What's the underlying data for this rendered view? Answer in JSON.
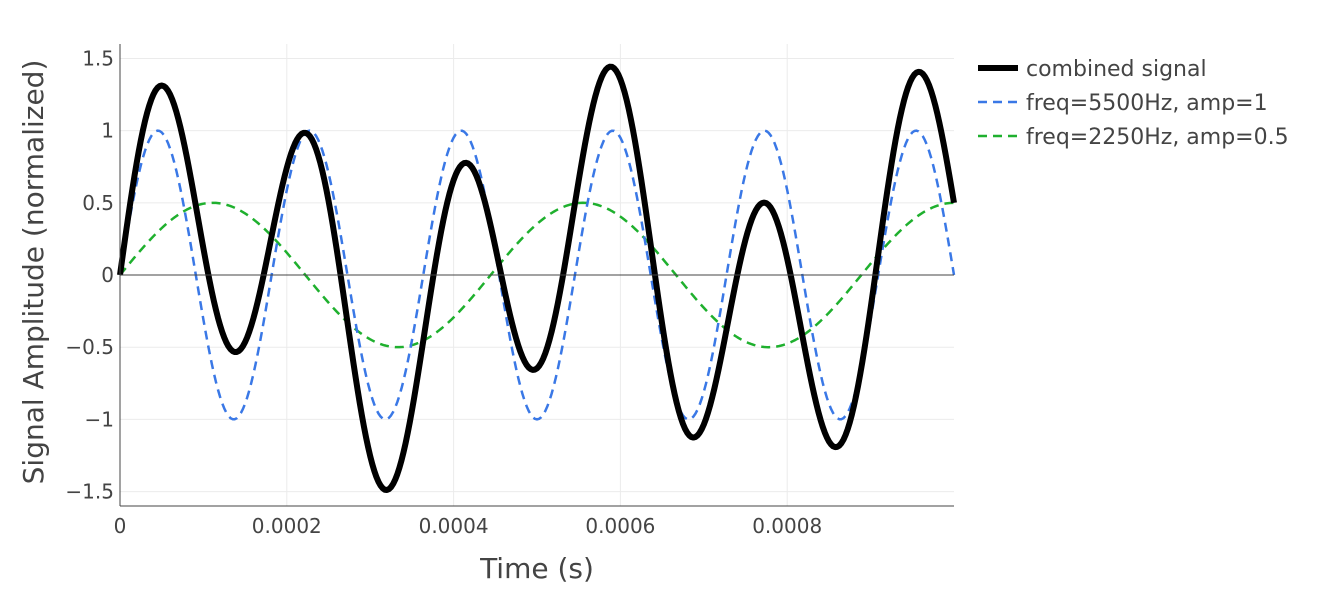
{
  "chart_data": {
    "type": "line",
    "title": "",
    "xlabel": "Time (s)",
    "ylabel": "Signal Amplitude (normalized)",
    "xlim": [
      0,
      0.001
    ],
    "ylim": [
      -1.6,
      1.6
    ],
    "x_ticks": [
      {
        "value": 0,
        "label": "0"
      },
      {
        "value": 0.0002,
        "label": "0.0002"
      },
      {
        "value": 0.0004,
        "label": "0.0004"
      },
      {
        "value": 0.0006,
        "label": "0.0006"
      },
      {
        "value": 0.0008,
        "label": "0.0008"
      }
    ],
    "y_ticks": [
      {
        "value": 1.5,
        "label": "1.5"
      },
      {
        "value": 1,
        "label": "1"
      },
      {
        "value": 0.5,
        "label": "0.5"
      },
      {
        "value": 0,
        "label": "0"
      },
      {
        "value": -0.5,
        "label": "−0.5"
      },
      {
        "value": -1,
        "label": "−1"
      },
      {
        "value": -1.5,
        "label": "−1.5"
      }
    ],
    "grid": true,
    "legend_position": "right",
    "series": [
      {
        "name": "combined signal",
        "frequency_hz": 5500,
        "amplitude": 1,
        "components": [
          [
            5500,
            1
          ],
          [
            2250,
            0.5
          ]
        ],
        "color": "#000000",
        "style": "solid"
      },
      {
        "name": "freq=5500Hz, amp=1",
        "frequency_hz": 5500,
        "amplitude": 1,
        "components": [
          [
            5500,
            1
          ]
        ],
        "color": "#3a78e6",
        "style": "dashed"
      },
      {
        "name": "freq=2250Hz, amp=0.5",
        "frequency_hz": 2250,
        "amplitude": 0.5,
        "components": [
          [
            2250,
            0.5
          ]
        ],
        "color": "#1fb02e",
        "style": "dashed"
      }
    ]
  }
}
